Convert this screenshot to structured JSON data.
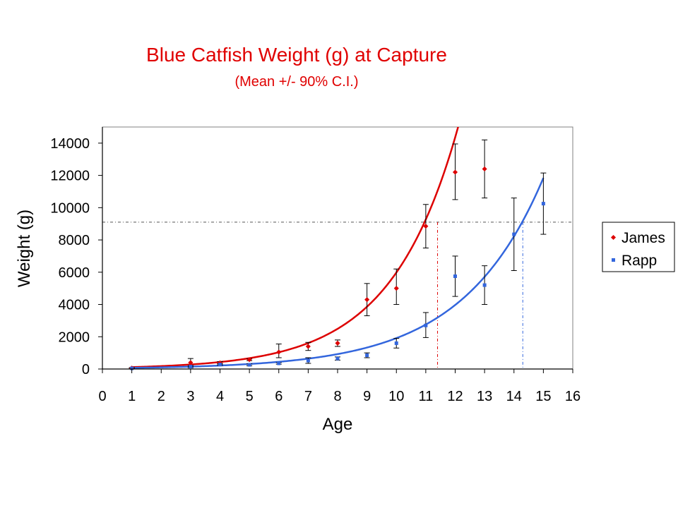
{
  "chart_data": {
    "type": "scatter",
    "title": "Blue Catfish Weight (g) at Capture",
    "subtitle": "(Mean +/- 90% C.I.)",
    "xlabel": "Age",
    "ylabel": "Weight (g)",
    "xlim": [
      0,
      16
    ],
    "ylim": [
      0,
      15000
    ],
    "xticks": [
      "0",
      "1",
      "2",
      "3",
      "4",
      "5",
      "6",
      "7",
      "8",
      "9",
      "10",
      "11",
      "12",
      "13",
      "14",
      "15",
      "16"
    ],
    "yticks": [
      "0",
      "2000",
      "4000",
      "6000",
      "8000",
      "10000",
      "12000",
      "14000"
    ],
    "grid": false,
    "legend_position": "right",
    "reference_line_y": 9100,
    "series": [
      {
        "name": "James",
        "color": "#dd0000",
        "marker": "diamond",
        "points": [
          {
            "x": 1,
            "y": 60,
            "lo": 30,
            "hi": 90
          },
          {
            "x": 3,
            "y": 400,
            "lo": 150,
            "hi": 650
          },
          {
            "x": 4,
            "y": 380,
            "lo": 300,
            "hi": 460
          },
          {
            "x": 5,
            "y": 580,
            "lo": 520,
            "hi": 640
          },
          {
            "x": 6,
            "y": 1050,
            "lo": 700,
            "hi": 1550
          },
          {
            "x": 7,
            "y": 1400,
            "lo": 1150,
            "hi": 1650
          },
          {
            "x": 8,
            "y": 1600,
            "lo": 1400,
            "hi": 1800
          },
          {
            "x": 9,
            "y": 4300,
            "lo": 3300,
            "hi": 5300
          },
          {
            "x": 10,
            "y": 5000,
            "lo": 4000,
            "hi": 6200
          },
          {
            "x": 11,
            "y": 8850,
            "lo": 7500,
            "hi": 10200
          },
          {
            "x": 12,
            "y": 12200,
            "lo": 10500,
            "hi": 13950
          },
          {
            "x": 13,
            "y": 12400,
            "lo": 10600,
            "hi": 14200
          }
        ],
        "fit_curve": {
          "a": 75,
          "b": 0.4379
        },
        "reference_x": 11.4
      },
      {
        "name": "Rapp",
        "color": "#3366dd",
        "marker": "square",
        "points": [
          {
            "x": 1,
            "y": 40,
            "lo": 20,
            "hi": 60
          },
          {
            "x": 3,
            "y": 150,
            "lo": 80,
            "hi": 220
          },
          {
            "x": 4,
            "y": 280,
            "lo": 220,
            "hi": 340
          },
          {
            "x": 5,
            "y": 260,
            "lo": 200,
            "hi": 320
          },
          {
            "x": 6,
            "y": 350,
            "lo": 300,
            "hi": 400
          },
          {
            "x": 7,
            "y": 520,
            "lo": 350,
            "hi": 700
          },
          {
            "x": 8,
            "y": 650,
            "lo": 550,
            "hi": 750
          },
          {
            "x": 9,
            "y": 850,
            "lo": 700,
            "hi": 1000
          },
          {
            "x": 10,
            "y": 1600,
            "lo": 1300,
            "hi": 1900
          },
          {
            "x": 11,
            "y": 2700,
            "lo": 1950,
            "hi": 3500
          },
          {
            "x": 12,
            "y": 5750,
            "lo": 4500,
            "hi": 7000
          },
          {
            "x": 13,
            "y": 5200,
            "lo": 4000,
            "hi": 6400
          },
          {
            "x": 14,
            "y": 8350,
            "lo": 6100,
            "hi": 10600
          },
          {
            "x": 15,
            "y": 10250,
            "lo": 8350,
            "hi": 12150
          }
        ],
        "fit_curve": {
          "a": 50,
          "b": 0.3645
        },
        "reference_x": 14.3
      }
    ]
  }
}
